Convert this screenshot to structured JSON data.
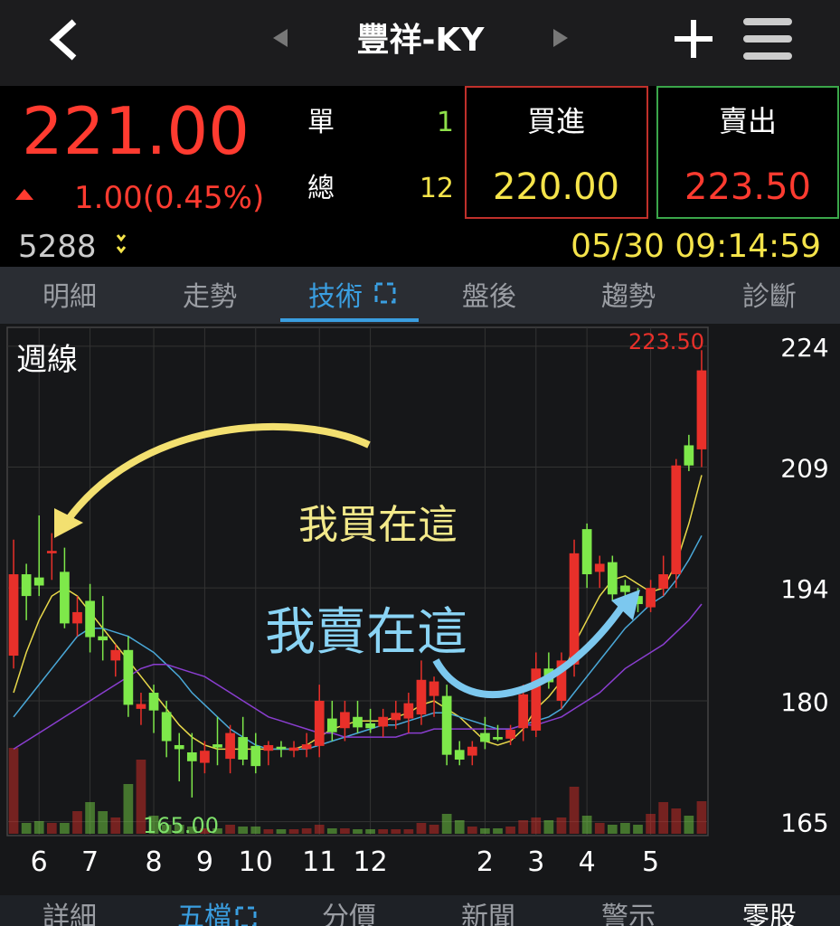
{
  "header": {
    "title": "豐祥-KY"
  },
  "quote": {
    "price": "221.00",
    "change": "1.00(0.45%)",
    "order_label": "單",
    "order_qty": "1",
    "total_label": "總",
    "total_qty": "12",
    "bid_label": "買進",
    "bid": "220.00",
    "ask_label": "賣出",
    "ask": "223.50",
    "volume": "5288",
    "time": "05/30 09:14:59"
  },
  "tabs": [
    "明細",
    "走勢",
    "技術",
    "盤後",
    "趨勢",
    "診斷"
  ],
  "bottom_tabs": [
    "詳細",
    "五檔",
    "分價",
    "新聞",
    "警示",
    "零股"
  ],
  "chart_data": {
    "type": "candlestick",
    "title": "週線",
    "categories": [
      null,
      null,
      "6",
      null,
      null,
      null,
      "7",
      null,
      null,
      null,
      null,
      "8",
      null,
      null,
      null,
      "9",
      null,
      null,
      null,
      "10",
      null,
      null,
      null,
      null,
      "11",
      null,
      null,
      null,
      "12",
      null,
      null,
      null,
      null,
      null,
      null,
      null,
      null,
      "2",
      null,
      null,
      null,
      "3",
      null,
      null,
      null,
      "4",
      null,
      null,
      null,
      null,
      "5",
      null,
      null,
      null,
      null
    ],
    "open": [
      185.6,
      195.7,
      195.3,
      198.3,
      196,
      189.6,
      192.4,
      188,
      185,
      186.3,
      179,
      181,
      178.6,
      174.5,
      173.6,
      172.3,
      174.6,
      172.8,
      175.5,
      174.4,
      173.8,
      174.3,
      173.8,
      174,
      174.4,
      177.8,
      176.6,
      178,
      177.2,
      176.8,
      177.6,
      177.8,
      178.3,
      180.6,
      180.6,
      173.9,
      173.2,
      176,
      175.5,
      175.3,
      176.6,
      176.3,
      184,
      180,
      184.5,
      201.3,
      196,
      197.2,
      194.3,
      193,
      191.6,
      193.9,
      195.7,
      211.7,
      211.2
    ],
    "high": [
      200,
      197,
      203,
      200.8,
      199,
      193,
      194.5,
      193,
      187,
      188,
      181,
      182,
      180,
      176,
      176,
      175,
      178,
      177,
      178,
      176,
      175,
      175,
      175,
      176,
      182,
      180,
      180,
      180,
      179,
      179,
      180,
      181,
      185,
      183,
      182,
      175,
      175,
      178,
      177,
      177,
      182,
      186,
      186,
      186,
      200,
      202,
      198,
      198,
      195,
      194,
      195,
      198,
      210,
      213,
      223.5
    ],
    "low": [
      184,
      190,
      193,
      195,
      189,
      188,
      186,
      185,
      183,
      178,
      177,
      176,
      173,
      170,
      168,
      171,
      172,
      171,
      172,
      171,
      172,
      173,
      173,
      173,
      173,
      175,
      175,
      176,
      176,
      175.5,
      176.5,
      176,
      177,
      178,
      172,
      172,
      172,
      174,
      175,
      174.5,
      175,
      175.5,
      181.5,
      179,
      183,
      194,
      194,
      192.5,
      192,
      191,
      191,
      193,
      194,
      208.5,
      209
    ],
    "close": [
      195.7,
      193,
      194.3,
      198.6,
      189.6,
      191,
      187.9,
      187.5,
      186.3,
      179.5,
      179.6,
      178.8,
      175,
      174,
      172.5,
      173.8,
      174.2,
      176,
      172.7,
      171.9,
      174.5,
      174,
      174.2,
      174.6,
      180,
      176.1,
      178.6,
      176.7,
      176.6,
      178,
      178.5,
      179.7,
      182.6,
      182.4,
      173.3,
      172.7,
      174.3,
      174.9,
      175.2,
      176.4,
      180.8,
      184,
      182.3,
      185,
      198.3,
      195.7,
      197,
      193.2,
      193.5,
      192,
      194,
      195.7,
      209.2,
      209.2,
      221
    ],
    "volume": [
      95,
      12,
      14,
      12,
      12,
      25,
      35,
      25,
      18,
      55,
      82,
      20,
      10,
      10,
      8,
      6,
      6,
      10,
      8,
      8,
      5,
      5,
      5,
      6,
      10,
      6,
      6,
      5,
      5,
      5,
      5,
      5,
      12,
      10,
      22,
      15,
      8,
      6,
      6,
      8,
      15,
      18,
      15,
      18,
      52,
      20,
      12,
      10,
      12,
      10,
      22,
      35,
      28,
      20,
      36
    ],
    "up_color": "#e8302a",
    "down_color": "#7ee84a",
    "series": [
      {
        "color": "#e8d84a",
        "values": [
          181,
          186,
          190,
          193,
          194,
          193,
          191,
          189,
          187,
          185,
          183,
          181,
          179,
          177,
          175.5,
          174.5,
          174,
          174,
          174,
          174,
          174,
          174,
          174,
          174.5,
          175.5,
          176.5,
          177,
          177.5,
          177.5,
          177.5,
          178,
          178.5,
          179.5,
          180,
          179,
          178,
          176.5,
          175,
          174.5,
          175,
          176.5,
          179,
          180.5,
          182.5,
          187,
          190,
          193,
          195,
          195.5,
          194.5,
          193.5,
          194,
          197,
          202,
          208
        ]
      },
      {
        "color": "#4aa8d8",
        "values": [
          178,
          180,
          182,
          184,
          186,
          188,
          189,
          189,
          188.5,
          188,
          187,
          186,
          184.5,
          183,
          181,
          179.5,
          178,
          176.5,
          175.5,
          174.5,
          174,
          174,
          174,
          174,
          174.5,
          175,
          175.5,
          176,
          176.5,
          177,
          177,
          177.5,
          178,
          178.5,
          178.5,
          178,
          177.5,
          177,
          176.5,
          176.5,
          177,
          177.5,
          178,
          179,
          181,
          183,
          185,
          187,
          189,
          190.5,
          192,
          193,
          195,
          197.5,
          200.5
        ]
      },
      {
        "color": "#8a3ed0",
        "values": [
          174,
          175,
          176,
          177,
          178,
          179,
          180,
          181,
          182,
          183,
          184,
          184.5,
          184.5,
          184,
          183.5,
          183,
          182,
          181,
          180,
          179,
          178,
          177.5,
          177,
          176.5,
          176,
          176,
          175.5,
          175.5,
          175.5,
          175.5,
          175.5,
          176,
          176,
          176.5,
          176.5,
          176.5,
          176.5,
          176.5,
          176.5,
          176.5,
          177,
          177,
          177.5,
          178,
          179,
          180,
          181,
          182.5,
          184,
          185,
          186,
          187,
          188.5,
          190,
          192
        ]
      }
    ],
    "ylim": [
      163.5,
      226
    ],
    "yticks": [
      165,
      180,
      194,
      209,
      224
    ],
    "grid": true,
    "annotations": [
      {
        "text": "我買在這"
      },
      {
        "text": "我賣在這"
      },
      {
        "text": "223.50"
      },
      {
        "text": "165.00"
      }
    ]
  }
}
